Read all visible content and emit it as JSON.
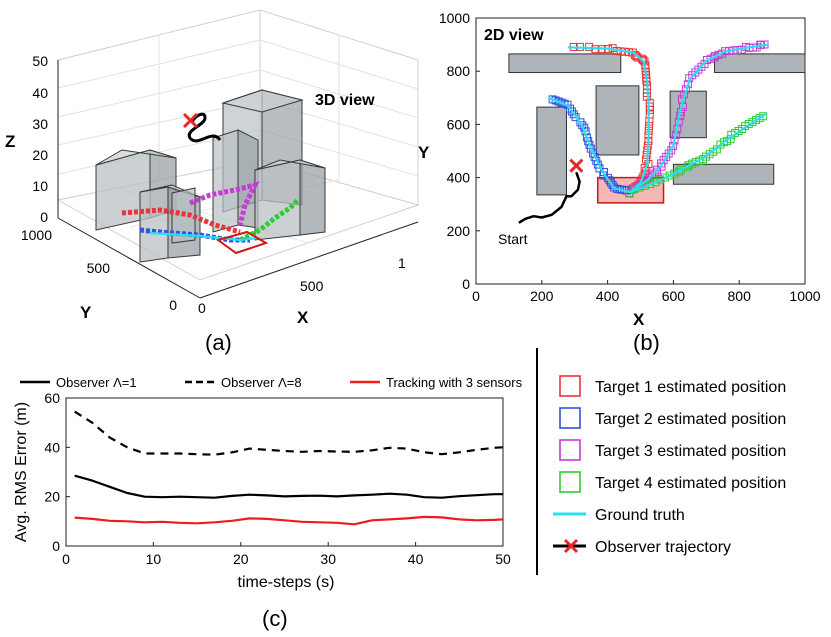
{
  "chart_data": [
    {
      "type": "3d-trajectory",
      "caption": "(a)",
      "title": "3D view",
      "xlabel": "X",
      "ylabel": "Y",
      "zlabel": "Z",
      "x_ticks": [
        "0",
        "500",
        "1"
      ],
      "y_ticks": [
        "0",
        "500",
        "1000"
      ],
      "z_ticks": [
        "0",
        "10",
        "20",
        "30",
        "40",
        "50"
      ],
      "zlim": [
        0,
        50
      ]
    },
    {
      "type": "2d-trajectory",
      "caption": "(b)",
      "title": "2D view",
      "xlabel": "X",
      "ylabel": "Y",
      "xlim": [
        0,
        1000
      ],
      "ylim": [
        0,
        1000
      ],
      "x_ticks": [
        "0",
        "200",
        "400",
        "600",
        "800",
        "1000"
      ],
      "y_ticks": [
        "0",
        "200",
        "400",
        "600",
        "800",
        "1000"
      ],
      "annotation": "Start",
      "obstacles": [
        {
          "x0": 100,
          "x1": 440,
          "y0": 795,
          "y1": 865
        },
        {
          "x0": 725,
          "x1": 1000,
          "y0": 795,
          "y1": 865
        },
        {
          "x0": 185,
          "x1": 275,
          "y0": 335,
          "y1": 665
        },
        {
          "x0": 365,
          "x1": 495,
          "y0": 485,
          "y1": 745
        },
        {
          "x0": 590,
          "x1": 700,
          "y0": 550,
          "y1": 725
        },
        {
          "x0": 600,
          "x1": 905,
          "y0": 375,
          "y1": 450
        }
      ],
      "target_region": {
        "x0": 370,
        "x1": 570,
        "y0": 305,
        "y1": 400
      },
      "observer": [
        [
          130,
          230
        ],
        [
          150,
          245
        ],
        [
          175,
          255
        ],
        [
          200,
          250
        ],
        [
          230,
          260
        ],
        [
          260,
          290
        ],
        [
          275,
          330
        ],
        [
          290,
          330
        ],
        [
          310,
          355
        ],
        [
          315,
          385
        ],
        [
          305,
          420
        ]
      ],
      "observer_end": [
        305,
        445
      ],
      "ground_truth": [
        [
          [
            470,
            345
          ],
          [
            500,
            380
          ],
          [
            520,
            450
          ],
          [
            525,
            560
          ],
          [
            525,
            670
          ],
          [
            520,
            760
          ],
          [
            510,
            835
          ],
          [
            480,
            870
          ],
          [
            400,
            885
          ],
          [
            280,
            890
          ]
        ],
        [
          [
            470,
            345
          ],
          [
            420,
            360
          ],
          [
            385,
            420
          ],
          [
            350,
            510
          ],
          [
            320,
            600
          ],
          [
            280,
            670
          ],
          [
            220,
            700
          ]
        ],
        [
          [
            470,
            345
          ],
          [
            520,
            390
          ],
          [
            560,
            440
          ],
          [
            600,
            520
          ],
          [
            620,
            650
          ],
          [
            650,
            770
          ],
          [
            700,
            840
          ],
          [
            760,
            875
          ],
          [
            830,
            890
          ],
          [
            890,
            900
          ]
        ],
        [
          [
            470,
            345
          ],
          [
            560,
            390
          ],
          [
            640,
            440
          ],
          [
            700,
            480
          ],
          [
            760,
            540
          ],
          [
            820,
            590
          ],
          [
            880,
            640
          ]
        ]
      ],
      "legend": [
        {
          "label": "Target 1 estimated position",
          "color": "#e8353b",
          "marker": "square"
        },
        {
          "label": "Target 2 estimated position",
          "color": "#3152e0",
          "marker": "square"
        },
        {
          "label": "Target 3 estimated position",
          "color": "#c63ad6",
          "marker": "square"
        },
        {
          "label": "Target 4 estimated position",
          "color": "#2fcc2f",
          "marker": "square"
        },
        {
          "label": "Ground truth",
          "color": "#26e0f0",
          "marker": "line"
        },
        {
          "label": "Observer trajectory",
          "color": "#000000",
          "marker": "line-x"
        }
      ]
    },
    {
      "type": "line",
      "caption": "(c)",
      "xlabel": "time-steps (s)",
      "ylabel": "Avg. RMS Error (m)",
      "xlim": [
        0,
        50
      ],
      "ylim": [
        0,
        60
      ],
      "x_ticks": [
        "0",
        "10",
        "20",
        "30",
        "40",
        "50"
      ],
      "y_ticks": [
        "0",
        "20",
        "40",
        "60"
      ],
      "series": [
        {
          "name": "Observer Λ=1",
          "color": "#000000",
          "style": "solid",
          "x": [
            1,
            3,
            5,
            7,
            9,
            11,
            13,
            15,
            17,
            19,
            21,
            23,
            25,
            27,
            29,
            31,
            33,
            35,
            37,
            39,
            41,
            43,
            45,
            47,
            49,
            50
          ],
          "y": [
            28.5,
            26.5,
            24,
            21.5,
            20,
            19.8,
            20,
            19.8,
            19.6,
            20.3,
            20.8,
            20.5,
            20.1,
            20.3,
            20.4,
            20.1,
            20.5,
            20.8,
            21.2,
            20.8,
            19.8,
            19.6,
            20.2,
            20.6,
            21,
            21
          ]
        },
        {
          "name": "Observer Λ=8",
          "color": "#000000",
          "style": "dashed",
          "x": [
            1,
            3,
            5,
            7,
            9,
            11,
            13,
            15,
            17,
            19,
            21,
            23,
            25,
            27,
            29,
            31,
            33,
            35,
            37,
            39,
            41,
            43,
            45,
            47,
            49,
            50
          ],
          "y": [
            54.5,
            50,
            44,
            40,
            37.5,
            37.5,
            37.5,
            37.2,
            37,
            38,
            39.5,
            39,
            38.5,
            38.2,
            38.5,
            38.3,
            38.2,
            38.8,
            39.8,
            39.5,
            38,
            37.2,
            38,
            39,
            39.8,
            40
          ]
        },
        {
          "name": "Tracking with 3 sensors",
          "color": "#ee1c1c",
          "style": "solid",
          "x": [
            1,
            3,
            5,
            7,
            9,
            11,
            13,
            15,
            17,
            19,
            21,
            23,
            25,
            27,
            29,
            31,
            33,
            35,
            37,
            39,
            41,
            43,
            45,
            47,
            49,
            50
          ],
          "y": [
            11.5,
            11,
            10.2,
            10,
            9.6,
            9.8,
            9.4,
            9.2,
            9.6,
            10.2,
            11.2,
            11,
            10.4,
            9.8,
            9.6,
            9.4,
            8.8,
            10.4,
            10.8,
            11.2,
            11.8,
            11.6,
            10.8,
            10.4,
            10.6,
            10.8
          ]
        }
      ]
    }
  ]
}
